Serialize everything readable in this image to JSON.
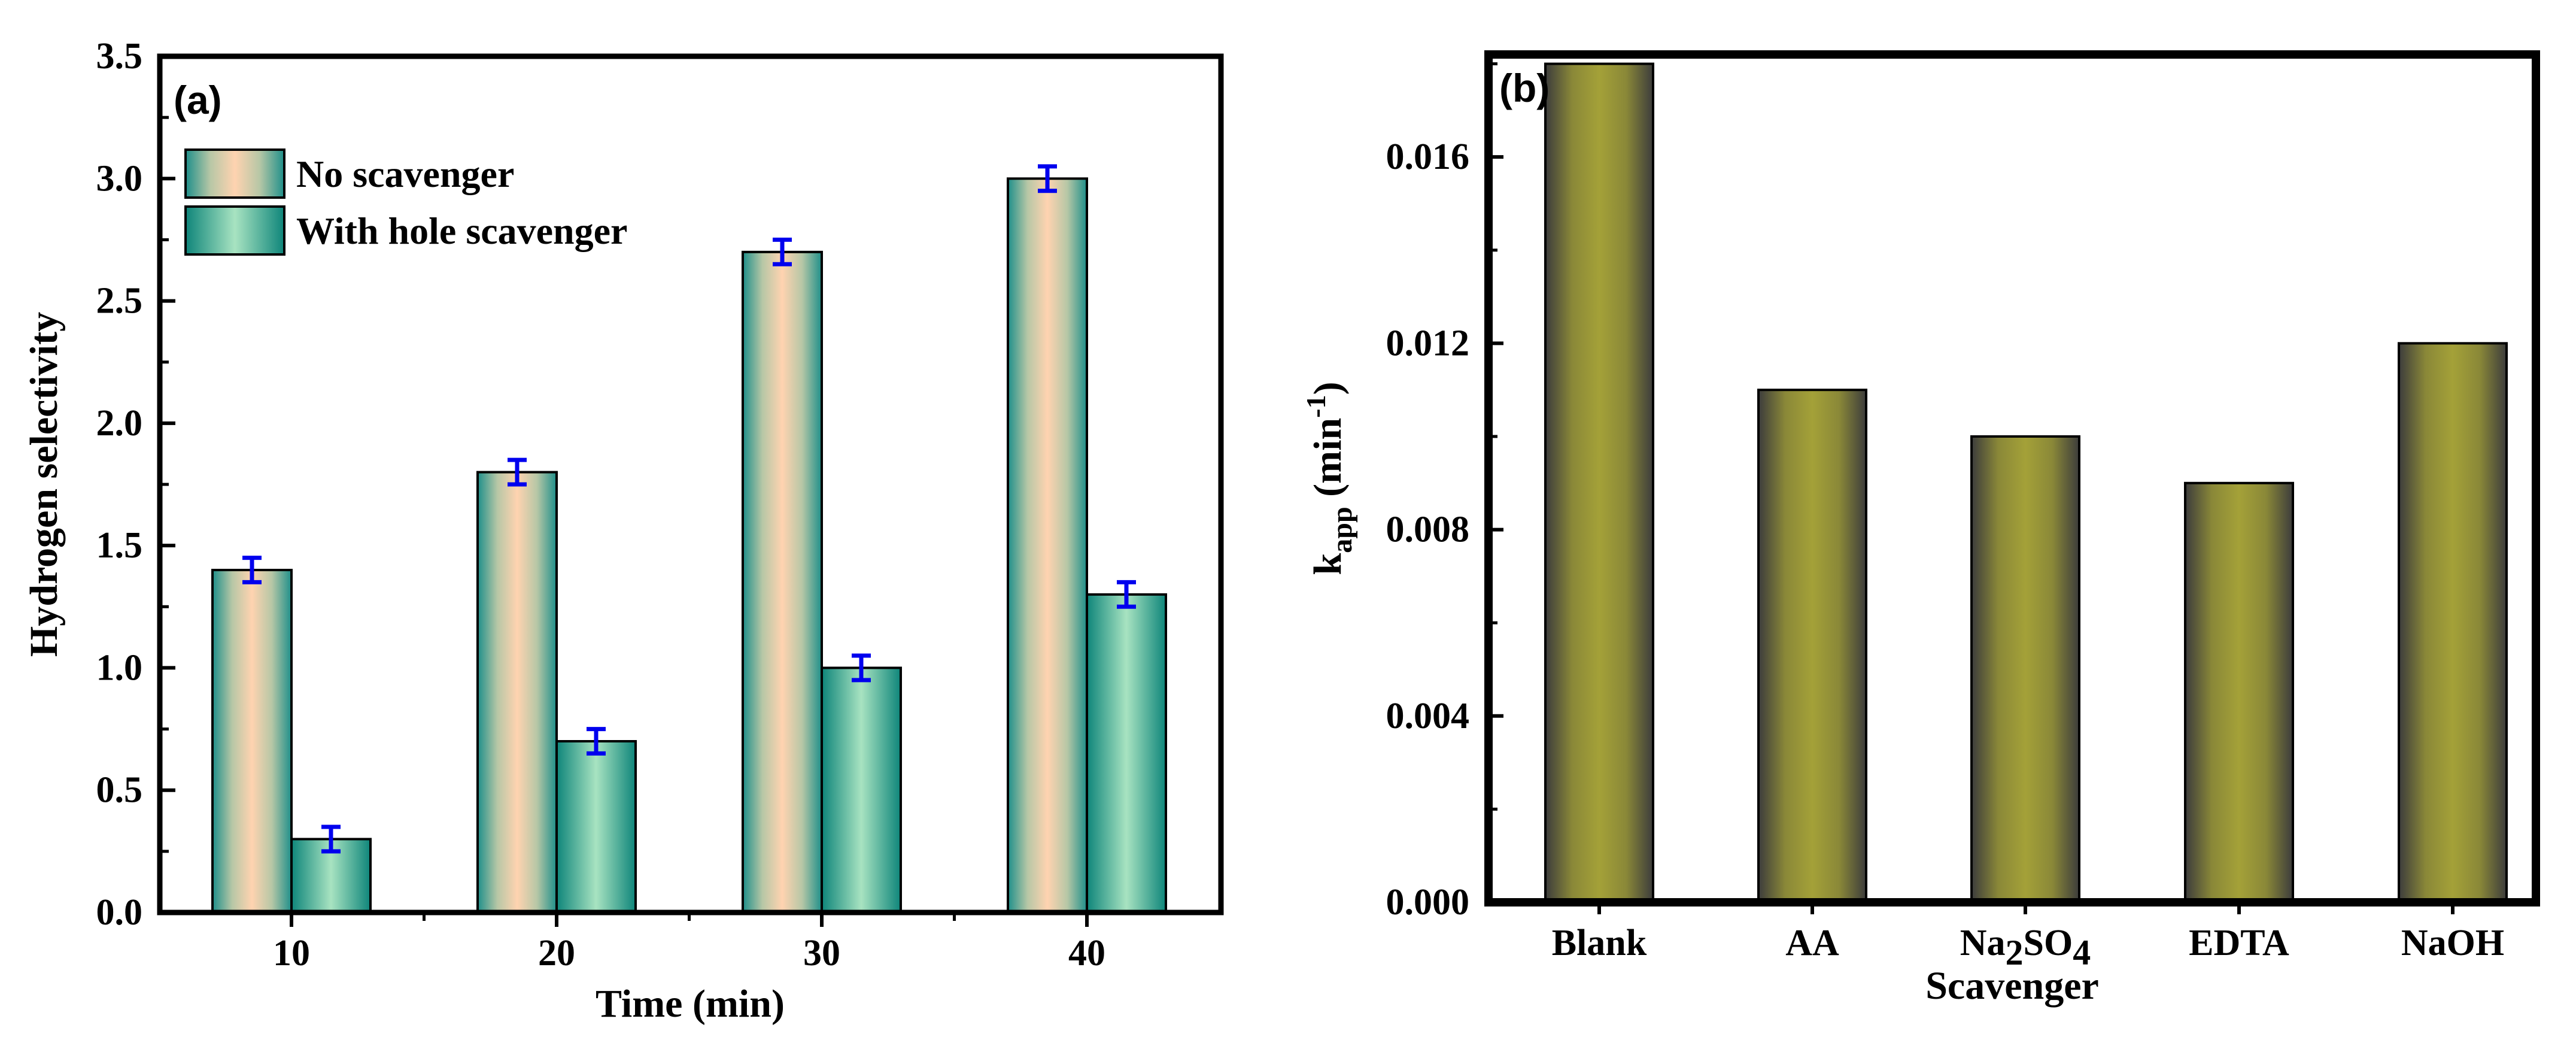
{
  "chart_data": [
    {
      "panel": "(a)",
      "type": "bar",
      "xlabel": "Time (min)",
      "ylabel": "Hydrogen selectivity",
      "categories": [
        "10",
        "20",
        "30",
        "40"
      ],
      "ylim": [
        0,
        3.5
      ],
      "yticks": [
        "0.0",
        "0.5",
        "1.0",
        "1.5",
        "2.0",
        "2.5",
        "3.0",
        "3.5"
      ],
      "series": [
        {
          "name": "No scavenger",
          "values": [
            1.4,
            1.8,
            2.7,
            3.0
          ],
          "errors": [
            0.05,
            0.05,
            0.05,
            0.05
          ]
        },
        {
          "name": "With hole scavenger",
          "values": [
            0.3,
            0.7,
            1.0,
            1.3
          ],
          "errors": [
            0.05,
            0.05,
            0.05,
            0.05
          ]
        }
      ],
      "legend_position": "top-left",
      "colors": {
        "series1_center": "#ffd3b0",
        "series1_edge": "#1e8f8a",
        "series2_center": "#a8e3c1",
        "series2_edge": "#0e857a",
        "error_bar": "#0000ee"
      }
    },
    {
      "panel": "(b)",
      "type": "bar",
      "xlabel": "Scavenger",
      "ylabel_base": "k",
      "ylabel_sub": "app",
      "ylabel_units_open": " (min",
      "ylabel_sup": "-1",
      "ylabel_close": ")",
      "categories": [
        {
          "label": "Blank"
        },
        {
          "label": "AA"
        },
        {
          "label": "Na",
          "sub1": "2",
          "mid": "SO",
          "sub2": "4"
        },
        {
          "label": "EDTA"
        },
        {
          "label": "NaOH"
        }
      ],
      "values": [
        0.018,
        0.011,
        0.01,
        0.009,
        0.012
      ],
      "ylim": [
        0,
        0.0182
      ],
      "yticks": [
        "0.000",
        "0.004",
        "0.008",
        "0.012",
        "0.016"
      ],
      "ytick_values": [
        0,
        0.004,
        0.008,
        0.012,
        0.016
      ],
      "colors": {
        "bar_center": "#a4a138",
        "bar_edge": "#3c3c3c"
      }
    }
  ]
}
